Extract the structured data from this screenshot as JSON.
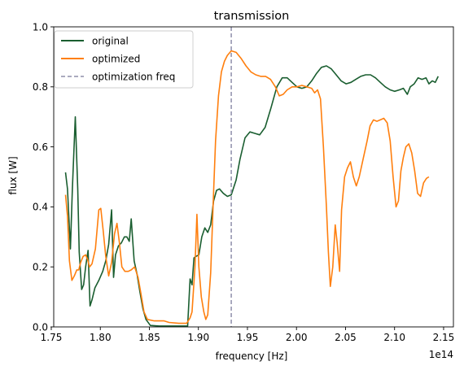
{
  "chart_data": {
    "type": "line",
    "title": "transmission",
    "xlabel": "frequency [Hz]",
    "ylabel": "flux [W]",
    "x_offset_label": "1e14",
    "xlim": [
      1.7525,
      2.16
    ],
    "ylim": [
      0.0,
      1.0
    ],
    "xticks": [
      1.75,
      1.8,
      1.85,
      1.9,
      1.95,
      2.0,
      2.05,
      2.1,
      2.15
    ],
    "xtick_labels": [
      "1.75",
      "1.80",
      "1.85",
      "1.90",
      "1.95",
      "2.00",
      "2.05",
      "2.10",
      "2.15"
    ],
    "yticks": [
      0.0,
      0.2,
      0.4,
      0.6,
      0.8,
      1.0
    ],
    "ytick_labels": [
      "0.0",
      "0.2",
      "0.4",
      "0.6",
      "0.8",
      "1.0"
    ],
    "legend_position": "top-left",
    "grid": false,
    "vline": {
      "x": 1.9335,
      "name": "optimization freq",
      "color": "#8f8faa",
      "style": "dashed"
    },
    "series": [
      {
        "name": "original",
        "color": "#1a5e30",
        "points": [
          [
            1.7645,
            0.515
          ],
          [
            1.7665,
            0.46
          ],
          [
            1.7695,
            0.26
          ],
          [
            1.7715,
            0.46
          ],
          [
            1.7745,
            0.7
          ],
          [
            1.777,
            0.46
          ],
          [
            1.7785,
            0.25
          ],
          [
            1.781,
            0.125
          ],
          [
            1.783,
            0.14
          ],
          [
            1.785,
            0.2
          ],
          [
            1.7875,
            0.255
          ],
          [
            1.7895,
            0.07
          ],
          [
            1.7915,
            0.09
          ],
          [
            1.7945,
            0.13
          ],
          [
            1.7985,
            0.155
          ],
          [
            1.8025,
            0.185
          ],
          [
            1.8055,
            0.22
          ],
          [
            1.8085,
            0.275
          ],
          [
            1.8115,
            0.39
          ],
          [
            1.8135,
            0.165
          ],
          [
            1.8155,
            0.24
          ],
          [
            1.8185,
            0.27
          ],
          [
            1.8215,
            0.28
          ],
          [
            1.8245,
            0.3
          ],
          [
            1.827,
            0.3
          ],
          [
            1.8295,
            0.285
          ],
          [
            1.8315,
            0.36
          ],
          [
            1.8345,
            0.22
          ],
          [
            1.8375,
            0.175
          ],
          [
            1.8405,
            0.115
          ],
          [
            1.8435,
            0.06
          ],
          [
            1.8465,
            0.025
          ],
          [
            1.851,
            0.005
          ],
          [
            1.86,
            0.003
          ],
          [
            1.875,
            0.003
          ],
          [
            1.889,
            0.003
          ],
          [
            1.8915,
            0.16
          ],
          [
            1.8935,
            0.14
          ],
          [
            1.8955,
            0.23
          ],
          [
            1.8975,
            0.235
          ],
          [
            1.9005,
            0.24
          ],
          [
            1.9035,
            0.3
          ],
          [
            1.9065,
            0.33
          ],
          [
            1.9095,
            0.315
          ],
          [
            1.9125,
            0.34
          ],
          [
            1.9155,
            0.42
          ],
          [
            1.9185,
            0.455
          ],
          [
            1.9215,
            0.46
          ],
          [
            1.9255,
            0.445
          ],
          [
            1.9295,
            0.435
          ],
          [
            1.9335,
            0.44
          ],
          [
            1.9385,
            0.49
          ],
          [
            1.9425,
            0.56
          ],
          [
            1.9475,
            0.63
          ],
          [
            1.9525,
            0.65
          ],
          [
            1.9575,
            0.645
          ],
          [
            1.9625,
            0.64
          ],
          [
            1.968,
            0.665
          ],
          [
            1.974,
            0.73
          ],
          [
            1.98,
            0.8
          ],
          [
            1.9855,
            0.83
          ],
          [
            1.9905,
            0.83
          ],
          [
            1.9955,
            0.815
          ],
          [
            2.0005,
            0.8
          ],
          [
            2.0055,
            0.795
          ],
          [
            2.0105,
            0.8
          ],
          [
            2.0155,
            0.82
          ],
          [
            2.0205,
            0.845
          ],
          [
            2.0255,
            0.865
          ],
          [
            2.0305,
            0.87
          ],
          [
            2.0355,
            0.86
          ],
          [
            2.0405,
            0.84
          ],
          [
            2.0455,
            0.82
          ],
          [
            2.0505,
            0.81
          ],
          [
            2.0555,
            0.815
          ],
          [
            2.0605,
            0.825
          ],
          [
            2.0655,
            0.835
          ],
          [
            2.0705,
            0.84
          ],
          [
            2.0755,
            0.84
          ],
          [
            2.0805,
            0.83
          ],
          [
            2.0855,
            0.815
          ],
          [
            2.0905,
            0.8
          ],
          [
            2.0955,
            0.79
          ],
          [
            2.1,
            0.785
          ],
          [
            2.105,
            0.79
          ],
          [
            2.109,
            0.795
          ],
          [
            2.113,
            0.775
          ],
          [
            2.116,
            0.8
          ],
          [
            2.12,
            0.81
          ],
          [
            2.124,
            0.83
          ],
          [
            2.128,
            0.825
          ],
          [
            2.132,
            0.83
          ],
          [
            2.135,
            0.81
          ],
          [
            2.1385,
            0.82
          ],
          [
            2.1415,
            0.815
          ],
          [
            2.1445,
            0.835
          ]
        ]
      },
      {
        "name": "optimized",
        "color": "#ff7f0e",
        "points": [
          [
            1.7645,
            0.44
          ],
          [
            1.7665,
            0.37
          ],
          [
            1.7685,
            0.22
          ],
          [
            1.771,
            0.155
          ],
          [
            1.7735,
            0.17
          ],
          [
            1.776,
            0.19
          ],
          [
            1.778,
            0.19
          ],
          [
            1.78,
            0.215
          ],
          [
            1.7825,
            0.235
          ],
          [
            1.785,
            0.24
          ],
          [
            1.787,
            0.225
          ],
          [
            1.789,
            0.2
          ],
          [
            1.7915,
            0.21
          ],
          [
            1.795,
            0.26
          ],
          [
            1.7985,
            0.39
          ],
          [
            1.8005,
            0.395
          ],
          [
            1.803,
            0.32
          ],
          [
            1.8055,
            0.235
          ],
          [
            1.8085,
            0.17
          ],
          [
            1.8115,
            0.215
          ],
          [
            1.8145,
            0.31
          ],
          [
            1.817,
            0.345
          ],
          [
            1.8195,
            0.28
          ],
          [
            1.822,
            0.2
          ],
          [
            1.825,
            0.185
          ],
          [
            1.8285,
            0.185
          ],
          [
            1.8315,
            0.19
          ],
          [
            1.835,
            0.2
          ],
          [
            1.8385,
            0.165
          ],
          [
            1.8415,
            0.11
          ],
          [
            1.8445,
            0.05
          ],
          [
            1.848,
            0.025
          ],
          [
            1.855,
            0.02
          ],
          [
            1.865,
            0.02
          ],
          [
            1.87,
            0.015
          ],
          [
            1.88,
            0.012
          ],
          [
            1.888,
            0.012
          ],
          [
            1.8915,
            0.03
          ],
          [
            1.8935,
            0.05
          ],
          [
            1.8965,
            0.2
          ],
          [
            1.8985,
            0.375
          ],
          [
            1.9005,
            0.2
          ],
          [
            1.903,
            0.1
          ],
          [
            1.9055,
            0.05
          ],
          [
            1.9075,
            0.025
          ],
          [
            1.9095,
            0.04
          ],
          [
            1.9125,
            0.18
          ],
          [
            1.9155,
            0.45
          ],
          [
            1.9175,
            0.62
          ],
          [
            1.9205,
            0.77
          ],
          [
            1.9235,
            0.85
          ],
          [
            1.9265,
            0.885
          ],
          [
            1.9295,
            0.905
          ],
          [
            1.9335,
            0.92
          ],
          [
            1.9385,
            0.915
          ],
          [
            1.9435,
            0.895
          ],
          [
            1.9485,
            0.87
          ],
          [
            1.9535,
            0.85
          ],
          [
            1.9585,
            0.84
          ],
          [
            1.9635,
            0.835
          ],
          [
            1.9685,
            0.835
          ],
          [
            1.9735,
            0.825
          ],
          [
            1.9785,
            0.8
          ],
          [
            1.9825,
            0.77
          ],
          [
            1.9865,
            0.775
          ],
          [
            1.9905,
            0.79
          ],
          [
            1.9955,
            0.8
          ],
          [
            2.0005,
            0.8
          ],
          [
            2.0055,
            0.805
          ],
          [
            2.0105,
            0.8
          ],
          [
            2.0155,
            0.795
          ],
          [
            2.0185,
            0.78
          ],
          [
            2.0215,
            0.79
          ],
          [
            2.0245,
            0.76
          ],
          [
            2.0275,
            0.6
          ],
          [
            2.0305,
            0.4
          ],
          [
            2.0325,
            0.25
          ],
          [
            2.0345,
            0.135
          ],
          [
            2.037,
            0.2
          ],
          [
            2.0395,
            0.34
          ],
          [
            2.0415,
            0.28
          ],
          [
            2.044,
            0.185
          ],
          [
            2.046,
            0.39
          ],
          [
            2.049,
            0.5
          ],
          [
            2.052,
            0.53
          ],
          [
            2.055,
            0.55
          ],
          [
            2.058,
            0.5
          ],
          [
            2.061,
            0.47
          ],
          [
            2.064,
            0.5
          ],
          [
            2.068,
            0.56
          ],
          [
            2.072,
            0.62
          ],
          [
            2.075,
            0.67
          ],
          [
            2.0785,
            0.69
          ],
          [
            2.082,
            0.685
          ],
          [
            2.0855,
            0.69
          ],
          [
            2.089,
            0.695
          ],
          [
            2.0925,
            0.68
          ],
          [
            2.0955,
            0.62
          ],
          [
            2.0985,
            0.5
          ],
          [
            2.1015,
            0.4
          ],
          [
            2.104,
            0.42
          ],
          [
            2.1065,
            0.52
          ],
          [
            2.109,
            0.565
          ],
          [
            2.1115,
            0.6
          ],
          [
            2.1145,
            0.61
          ],
          [
            2.1175,
            0.58
          ],
          [
            2.1205,
            0.52
          ],
          [
            2.1235,
            0.445
          ],
          [
            2.1265,
            0.435
          ],
          [
            2.1295,
            0.48
          ],
          [
            2.1325,
            0.495
          ],
          [
            2.135,
            0.5
          ]
        ]
      }
    ]
  }
}
